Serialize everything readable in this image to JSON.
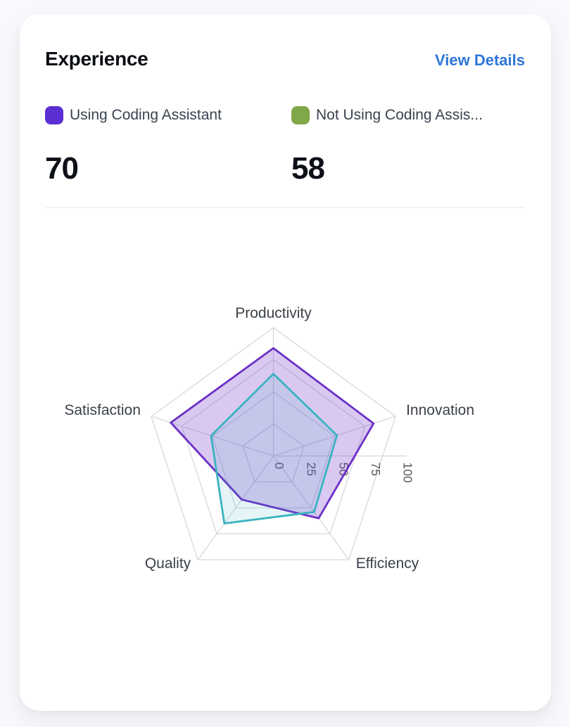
{
  "card": {
    "title": "Experience",
    "action_label": "View Details"
  },
  "legend": {
    "items": [
      {
        "label": "Using Coding Assistant",
        "value": "70",
        "swatch_color": "#5a2ed3"
      },
      {
        "label": "Not Using Coding Assis...",
        "value": "58",
        "swatch_color": "#80a748"
      }
    ]
  },
  "chart_data": {
    "type": "radar",
    "title": "Experience comparison radar",
    "categories": [
      "Productivity",
      "Innovation",
      "Efficiency",
      "Quality",
      "Satisfaction"
    ],
    "series": [
      {
        "name": "Using Coding Assistant",
        "values": [
          84,
          82,
          60,
          42,
          84
        ],
        "stroke": "#6c2fc7",
        "fill": "rgba(108,47,199,0.26)"
      },
      {
        "name": "Not Using Coding Assistant",
        "values": [
          64,
          52,
          54,
          65,
          51
        ],
        "stroke": "#39b3c0",
        "fill": "rgba(57,179,192,0.13)"
      }
    ],
    "ticks": [
      0,
      25,
      50,
      75,
      100
    ],
    "max": 100,
    "grid": true,
    "grid_color": "#d5d5db",
    "tick_label_color": "#54575d",
    "category_label_color": "#3b4149",
    "legend_position": "top"
  }
}
